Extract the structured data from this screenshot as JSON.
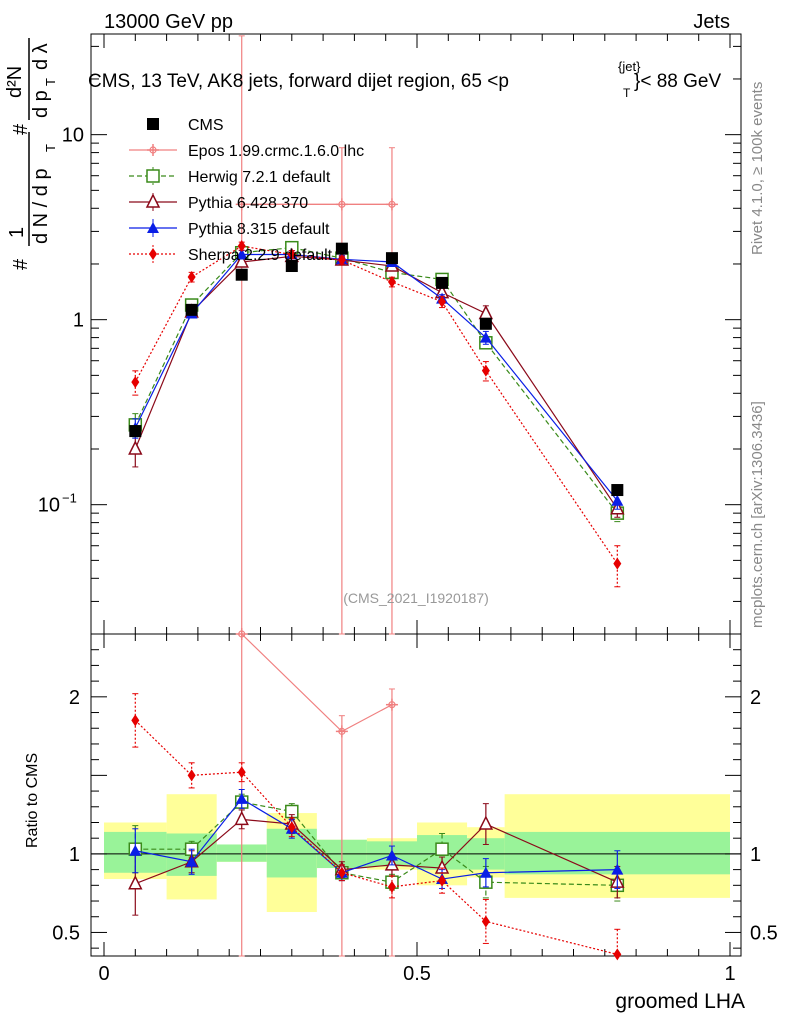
{
  "header": {
    "left": "13000 GeV pp",
    "right": "Jets",
    "title_main": "CMS, 13 TeV, AK8 jets, forward dijet region, 65 <p",
    "title_sub": "T",
    "title_sup": "{jet}",
    "title_end": "}< 88 GeV"
  },
  "side": {
    "rivet": "Rivet 4.1.0, ≥ 100k events",
    "mcplots": "mcplots.cern.ch [arXiv:1306.3436]"
  },
  "watermark": "(CMS_2021_I1920187)",
  "chart_data": {
    "type": "line",
    "xlabel": "groomed LHA",
    "ylabel_top": "1/dN/dp_T · d²N/dp_T dλ",
    "ylabel_top_parts": {
      "one": "1",
      "hash1": "#",
      "dN": "d N / d p",
      "T1": "T",
      "hash2": "#",
      "d2N": "d²N",
      "dpT": "d p",
      "T2": "T",
      "dl": "d λ",
      "hash3": "#"
    },
    "ylabel_bottom": "Ratio to CMS",
    "xlim": [
      0,
      1
    ],
    "ylim_main": [
      0.02,
      35
    ],
    "ylim_ratio": [
      0.35,
      2.4
    ],
    "x_ticks": [
      {
        "v": 0,
        "label": "0"
      },
      {
        "v": 0.5,
        "label": "0.5"
      },
      {
        "v": 1,
        "label": "1"
      }
    ],
    "y_ticks_main": [
      {
        "v": 0.1,
        "label": "10",
        "sup": "−1"
      },
      {
        "v": 1,
        "label": "1",
        "sup": ""
      },
      {
        "v": 10,
        "label": "10",
        "sup": ""
      }
    ],
    "y_ticks_ratio": [
      {
        "v": 0.5,
        "label": "0.5"
      },
      {
        "v": 1,
        "label": "1"
      },
      {
        "v": 2,
        "label": "2"
      }
    ],
    "bins": [
      {
        "lo": 0.0,
        "hi": 0.1
      },
      {
        "lo": 0.1,
        "hi": 0.18
      },
      {
        "lo": 0.18,
        "hi": 0.26
      },
      {
        "lo": 0.26,
        "hi": 0.34
      },
      {
        "lo": 0.34,
        "hi": 0.42
      },
      {
        "lo": 0.42,
        "hi": 0.5
      },
      {
        "lo": 0.5,
        "hi": 0.58
      },
      {
        "lo": 0.58,
        "hi": 0.64
      },
      {
        "lo": 0.64,
        "hi": 1.0
      }
    ],
    "band_inner": [
      [
        0.88,
        1.14
      ],
      [
        0.86,
        1.13
      ],
      [
        0.95,
        1.06
      ],
      [
        0.85,
        1.16
      ],
      [
        0.91,
        1.09
      ],
      [
        0.92,
        1.08
      ],
      [
        0.9,
        1.12
      ],
      [
        0.9,
        1.1
      ],
      [
        0.87,
        1.14
      ]
    ],
    "band_outer": [
      [
        0.84,
        1.2
      ],
      [
        0.71,
        1.38
      ],
      [
        0.95,
        1.06
      ],
      [
        0.63,
        1.26
      ],
      [
        0.91,
        1.09
      ],
      [
        0.9,
        1.1
      ],
      [
        0.8,
        1.2
      ],
      [
        0.85,
        1.17
      ],
      [
        0.72,
        1.38
      ]
    ],
    "cms": {
      "name": "CMS",
      "x": [
        0.05,
        0.14,
        0.22,
        0.3,
        0.38,
        0.46,
        0.54,
        0.61,
        0.82
      ],
      "y": [
        0.25,
        1.13,
        1.75,
        1.95,
        2.42,
        2.15,
        1.58,
        0.95,
        0.12
      ]
    },
    "series": [
      {
        "name": "Epos 1.99.crmc.1.6.0 lhc",
        "color": "#f08080",
        "style": "solid",
        "marker": "cross",
        "x": [
          0.22,
          0.38,
          0.46
        ],
        "y": [
          4.2,
          4.2,
          4.2
        ],
        "err_lo": [
          4.2,
          4.2,
          4.2
        ],
        "err_hi": [
          30,
          4.3,
          4.3
        ],
        "xerr": [
          0.04,
          0.04,
          0.04
        ],
        "xerr_lo_edge": [
          0.22,
          0.26,
          0.38
        ],
        "xerr_hi_edge": [
          0.26,
          0.38,
          0.46
        ],
        "ratio": [
          2.4,
          1.78,
          1.95
        ],
        "ratio_err_lo": [
          2.0,
          1.5,
          1.6
        ],
        "ratio_err_hi": [
          0.1,
          0.1,
          0.1
        ]
      },
      {
        "name": "Herwig 7.2.1 default",
        "color": "#3a8a1a",
        "style": "dashed",
        "marker": "open-square",
        "x": [
          0.05,
          0.14,
          0.22,
          0.3,
          0.38,
          0.46,
          0.54,
          0.61,
          0.82
        ],
        "y": [
          0.27,
          1.2,
          2.3,
          2.45,
          2.15,
          1.8,
          1.65,
          0.75,
          0.09
        ],
        "err": [
          0.15,
          0.05,
          0.05,
          0.05,
          0.05,
          0.05,
          0.05,
          0.07,
          0.1
        ],
        "ratio": [
          1.03,
          1.03,
          1.33,
          1.27,
          0.88,
          0.82,
          1.03,
          0.82,
          0.8
        ],
        "ratio_err": [
          0.15,
          0.05,
          0.05,
          0.05,
          0.05,
          0.05,
          0.1,
          0.1,
          0.1
        ]
      },
      {
        "name": "Pythia 6.428 370",
        "color": "#8b0a1a",
        "style": "solid",
        "marker": "open-triangle",
        "x": [
          0.05,
          0.14,
          0.22,
          0.3,
          0.38,
          0.46,
          0.54,
          0.61,
          0.82
        ],
        "y": [
          0.2,
          1.1,
          2.05,
          2.2,
          2.1,
          1.95,
          1.4,
          1.08,
          0.095
        ],
        "err": [
          0.2,
          0.05,
          0.05,
          0.05,
          0.05,
          0.05,
          0.05,
          0.1,
          0.1
        ],
        "ratio": [
          0.81,
          0.95,
          1.22,
          1.19,
          0.9,
          0.93,
          0.91,
          1.19,
          0.82
        ],
        "ratio_err": [
          0.2,
          0.07,
          0.06,
          0.06,
          0.05,
          0.07,
          0.07,
          0.13,
          0.1
        ]
      },
      {
        "name": "Pythia 8.315 default",
        "color": "#0a1ee6",
        "style": "solid",
        "marker": "triangle",
        "x": [
          0.05,
          0.14,
          0.22,
          0.3,
          0.38,
          0.46,
          0.54,
          0.61,
          0.82
        ],
        "y": [
          0.26,
          1.08,
          2.25,
          2.25,
          2.12,
          2.05,
          1.3,
          0.8,
          0.105
        ],
        "err": [
          0.12,
          0.05,
          0.05,
          0.05,
          0.05,
          0.05,
          0.05,
          0.08,
          0.1
        ],
        "ratio": [
          1.02,
          0.95,
          1.35,
          1.16,
          0.88,
          0.99,
          0.84,
          0.88,
          0.9
        ],
        "ratio_err": [
          0.14,
          0.08,
          0.06,
          0.06,
          0.05,
          0.06,
          0.06,
          0.09,
          0.12
        ]
      },
      {
        "name": "Sherpa 2.2.9 default",
        "color": "#e60000",
        "style": "dotted",
        "marker": "diamond",
        "x": [
          0.05,
          0.14,
          0.22,
          0.3,
          0.38,
          0.46,
          0.54,
          0.61,
          0.82
        ],
        "y": [
          0.46,
          1.7,
          2.5,
          2.25,
          2.1,
          1.6,
          1.25,
          0.53,
          0.048
        ],
        "err": [
          0.15,
          0.06,
          0.05,
          0.05,
          0.05,
          0.06,
          0.07,
          0.12,
          0.25
        ],
        "ratio": [
          1.85,
          1.5,
          1.52,
          1.17,
          0.88,
          0.79,
          0.83,
          0.57,
          0.36
        ],
        "ratio_err": [
          0.17,
          0.08,
          0.06,
          0.06,
          0.05,
          0.07,
          0.08,
          0.14,
          0.16
        ]
      }
    ]
  }
}
